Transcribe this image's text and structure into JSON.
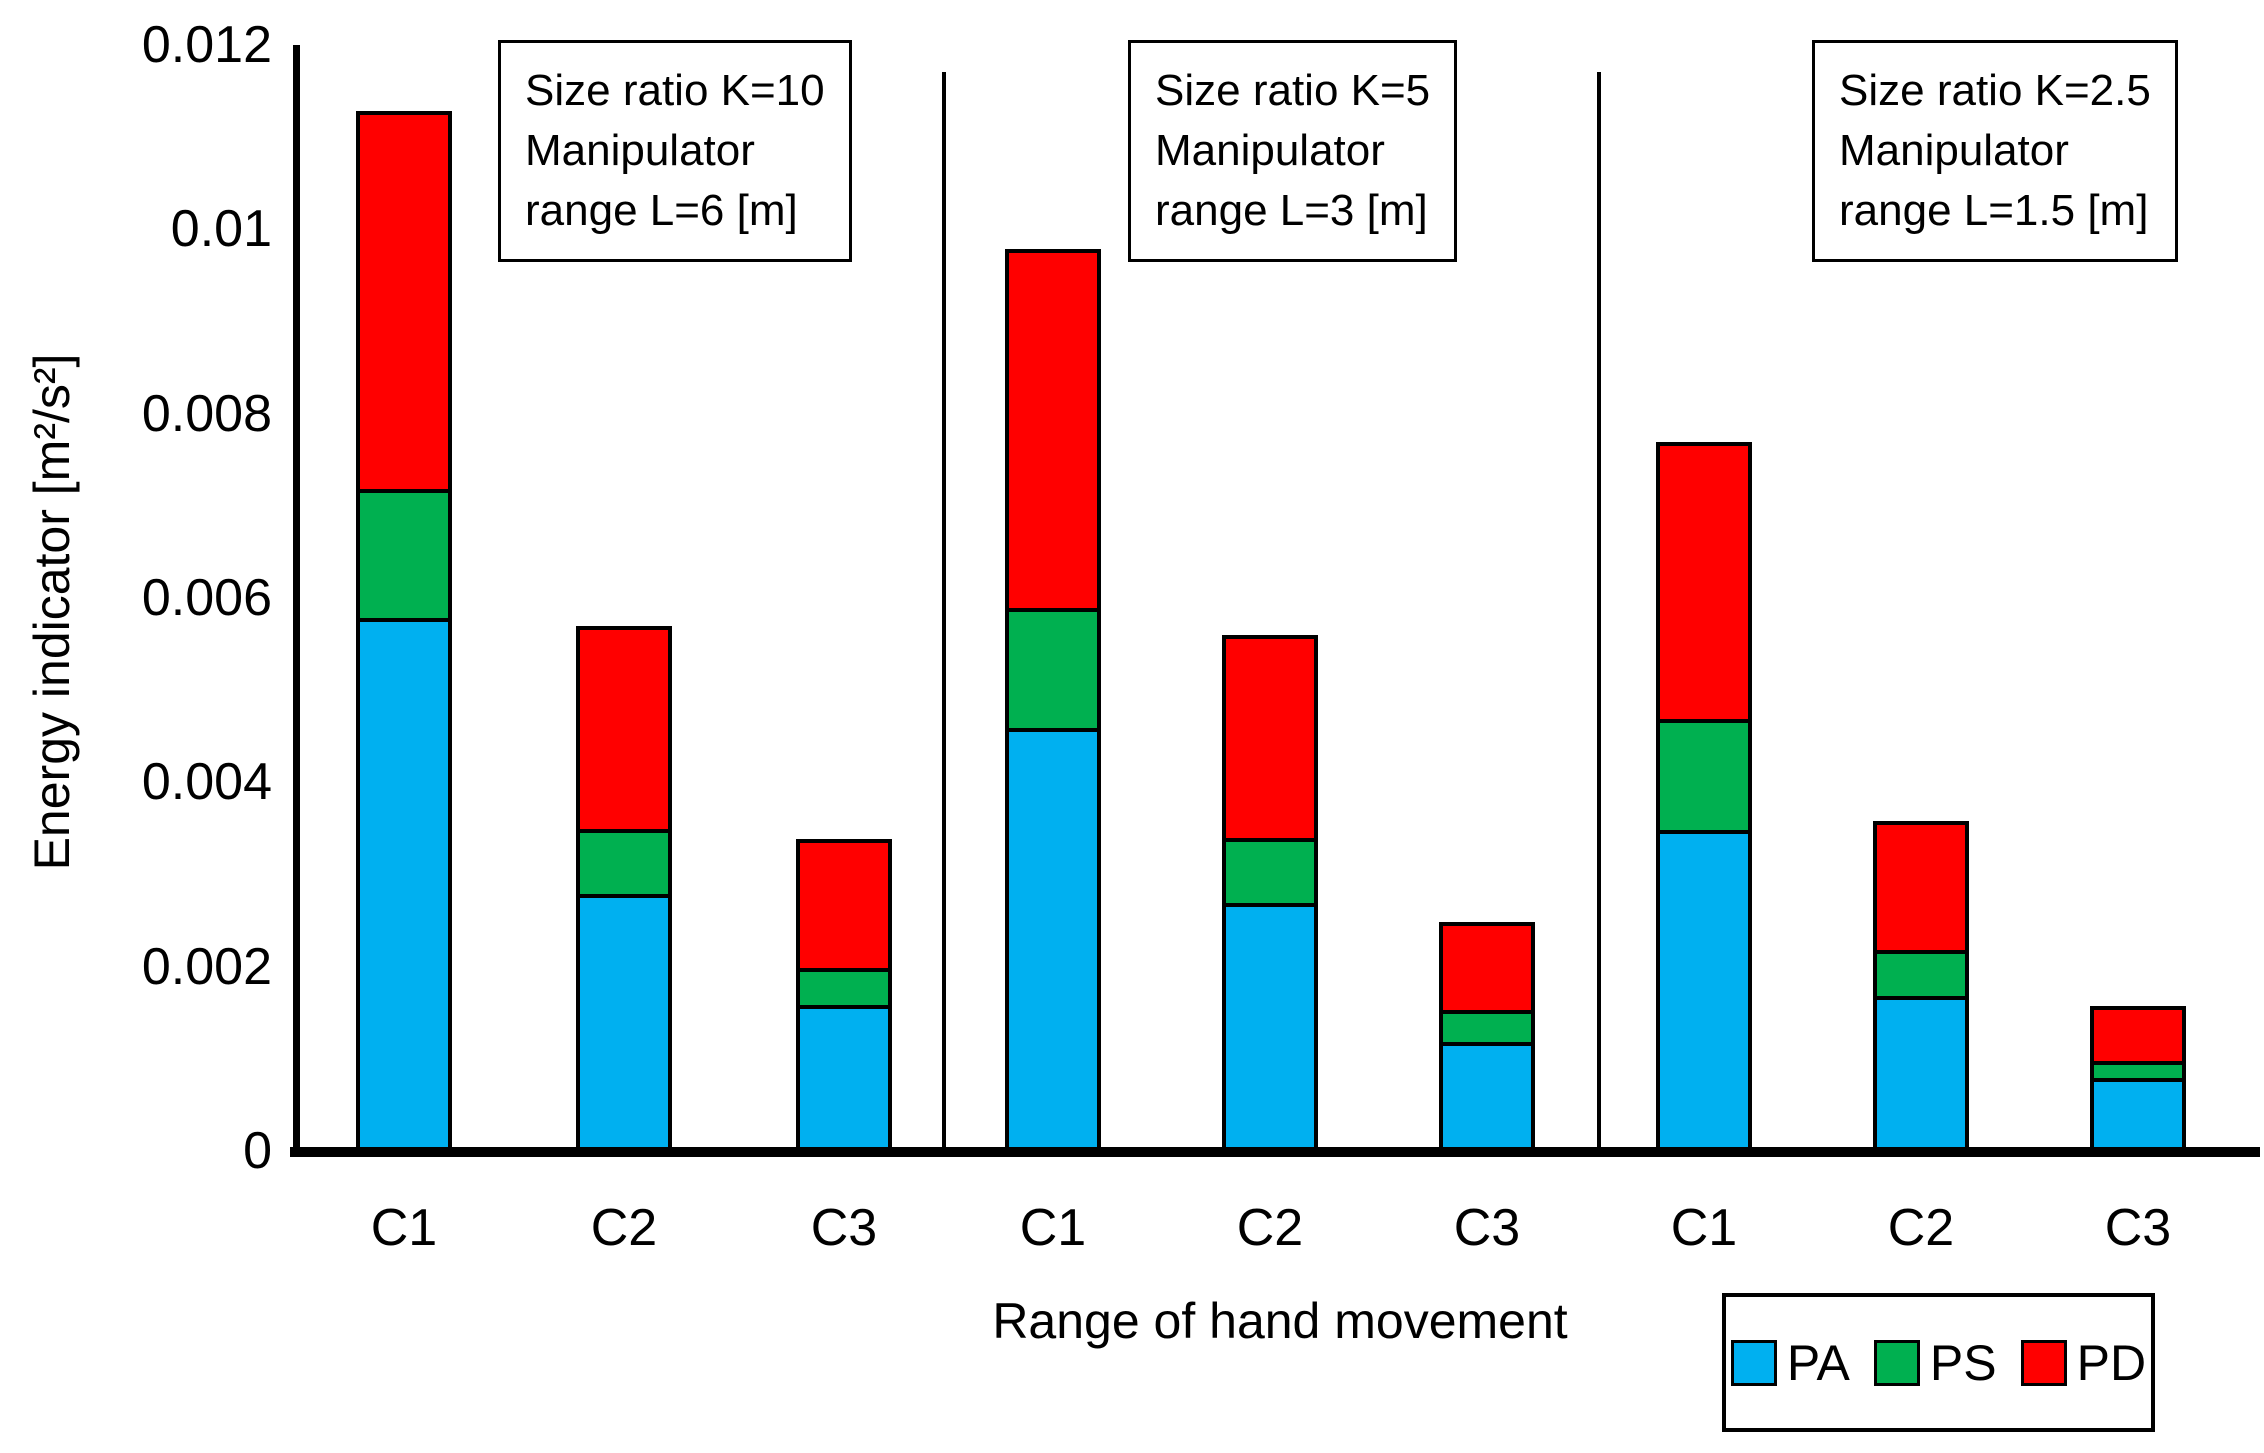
{
  "y_axis": {
    "title": "Energy indicator [m²/s²]",
    "tick_labels": [
      "0",
      "0.002",
      "0.004",
      "0.006",
      "0.008",
      "0.01",
      "0.012"
    ],
    "tick_values": [
      0,
      0.002,
      0.004,
      0.006,
      0.008,
      0.01,
      0.012
    ]
  },
  "x_axis": {
    "title": "Range of hand movement"
  },
  "legend": {
    "items": [
      {
        "label": "PA",
        "color": "#00B0F0"
      },
      {
        "label": "PS",
        "color": "#00B050"
      },
      {
        "label": "PD",
        "color": "#FF0000"
      }
    ]
  },
  "chart_data": {
    "type": "bar",
    "stacked": true,
    "title": "",
    "xlabel": "Range of hand movement",
    "ylabel": "Energy indicator [m²/s²]",
    "ylim": [
      0,
      0.012
    ],
    "ytick_step": 0.002,
    "grid": false,
    "legend_position": "bottom-right",
    "series_colors": {
      "PA": "#00B0F0",
      "PS": "#00B050",
      "PD": "#FF0000"
    },
    "groups": [
      {
        "annotation_lines": [
          "Size ratio K=10",
          "Manipulator",
          "range L=6 [m]"
        ],
        "categories": [
          "C1",
          "C2",
          "C3"
        ],
        "series": [
          {
            "name": "PA",
            "values": [
              0.0057,
              0.0027,
              0.0015
            ]
          },
          {
            "name": "PS",
            "values": [
              0.0014,
              0.0007,
              0.0004
            ]
          },
          {
            "name": "PD",
            "values": [
              0.0041,
              0.0022,
              0.0014
            ]
          }
        ],
        "totals": [
          0.0112,
          0.0056,
          0.0033
        ]
      },
      {
        "annotation_lines": [
          "Size ratio K=5",
          "Manipulator",
          "range L=3 [m]"
        ],
        "categories": [
          "C1",
          "C2",
          "C3"
        ],
        "series": [
          {
            "name": "PA",
            "values": [
              0.0045,
              0.0026,
              0.0011
            ]
          },
          {
            "name": "PS",
            "values": [
              0.0013,
              0.0007,
              0.00035
            ]
          },
          {
            "name": "PD",
            "values": [
              0.0039,
              0.0022,
              0.00095
            ]
          }
        ],
        "totals": [
          0.0097,
          0.0055,
          0.0024
        ]
      },
      {
        "annotation_lines": [
          "Size ratio K=2.5",
          "Manipulator",
          "range L=1.5 [m]"
        ],
        "categories": [
          "C1",
          "C2",
          "C3"
        ],
        "series": [
          {
            "name": "PA",
            "values": [
              0.0034,
              0.0016,
              0.0007
            ]
          },
          {
            "name": "PS",
            "values": [
              0.0012,
              0.0005,
              0.00018
            ]
          },
          {
            "name": "PD",
            "values": [
              0.003,
              0.0014,
              0.0006
            ]
          }
        ],
        "totals": [
          0.0076,
          0.0035,
          0.00148
        ]
      }
    ]
  }
}
